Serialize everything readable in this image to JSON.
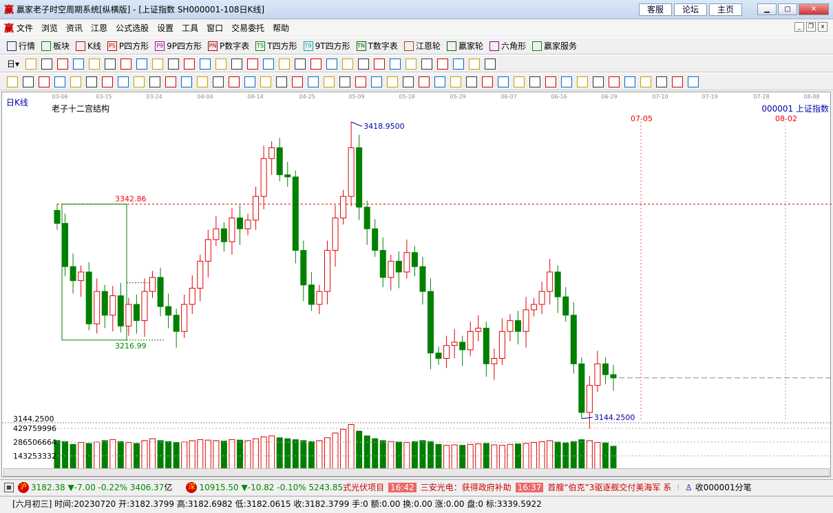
{
  "window": {
    "title": "赢家老子时空周期系统[纵横版] - [上证指数  SH000001-108日K线]",
    "logo": "赢",
    "links": [
      "客服",
      "论坛",
      "主页"
    ]
  },
  "menu": [
    "文件",
    "浏览",
    "资讯",
    "江恩",
    "公式选股",
    "设置",
    "工具",
    "窗口",
    "交易委托",
    "帮助"
  ],
  "toolbar1": [
    {
      "icon": "quotes-grid-icon",
      "label": "行情"
    },
    {
      "icon": "blocks-icon",
      "label": "板块"
    },
    {
      "icon": "kline-icon",
      "label": "K线"
    },
    {
      "icon": "PS",
      "label": "P四方形"
    },
    {
      "icon": "P9",
      "label": "9P四方形"
    },
    {
      "icon": "PN",
      "label": "P数字表"
    },
    {
      "icon": "TS",
      "label": "T四方形"
    },
    {
      "icon": "T9",
      "label": "9T四方形"
    },
    {
      "icon": "TN",
      "label": "T数字表"
    },
    {
      "icon": "gann-wheel-icon",
      "label": "江恩轮"
    },
    {
      "icon": "winner-wheel-icon",
      "label": "赢家轮"
    },
    {
      "icon": "hexagon-icon",
      "label": "六角形"
    },
    {
      "icon": "dollar-icon",
      "label": "赢家服务"
    }
  ],
  "toolbar2": {
    "period": "日"
  },
  "chart": {
    "period_label": "日K线",
    "indicator_title": "老子十二宫结构",
    "symbol_label": "000001  上证指数",
    "date_ticks": [
      "03-06",
      "03-15",
      "03-24",
      "04-04",
      "04-14",
      "04-25",
      "05-09",
      "05-18",
      "05-29",
      "06-07",
      "06-16",
      "06-29",
      "07-10",
      "07-19",
      "07-28",
      "08-08"
    ],
    "cycle_dates": [
      "07-05",
      "08-02"
    ],
    "high_label": "3418.9500",
    "low_label": "3144.2500",
    "left_low_label": "3144.2500",
    "box_high": "3342.86",
    "box_low": "3216.99",
    "volume_ticks": [
      "429759996",
      "286506664",
      "143253332"
    ],
    "colors": {
      "up": "#e00000",
      "down": "#008000",
      "box": "#008000",
      "cycle_line": "#e00000"
    },
    "closes": [
      3325,
      3285,
      3272,
      3280,
      3232,
      3262,
      3240,
      3258,
      3230,
      3250,
      3235,
      3262,
      3275,
      3248,
      3240,
      3225,
      3250,
      3265,
      3290,
      3310,
      3320,
      3308,
      3330,
      3320,
      3328,
      3350,
      3385,
      3395,
      3370,
      3368,
      3300,
      3268,
      3250,
      3262,
      3300,
      3330,
      3350,
      3395,
      3340,
      3320,
      3300,
      3275,
      3290,
      3280,
      3298,
      3285,
      3262,
      3205,
      3200,
      3212,
      3215,
      3208,
      3225,
      3228,
      3195,
      3200,
      3225,
      3235,
      3225,
      3245,
      3250,
      3262,
      3280,
      3257,
      3240,
      3195,
      3150,
      3175,
      3195,
      3185,
      3182
    ],
    "volumes": [
      300,
      290,
      260,
      280,
      270,
      285,
      300,
      310,
      290,
      280,
      270,
      300,
      320,
      300,
      290,
      280,
      285,
      300,
      310,
      305,
      300,
      295,
      310,
      305,
      300,
      320,
      340,
      350,
      330,
      320,
      310,
      300,
      290,
      300,
      330,
      380,
      420,
      470,
      400,
      350,
      320,
      300,
      290,
      285,
      280,
      290,
      300,
      290,
      260,
      250,
      255,
      250,
      260,
      265,
      270,
      255,
      250,
      260,
      265,
      270,
      280,
      290,
      300,
      285,
      275,
      290,
      310,
      300,
      280,
      275,
      240
    ]
  },
  "ticker": {
    "sh_icon": "沪",
    "sh": "3182.38 ▼-7.00 -0.22% 3406.37",
    "sh_unit": "亿",
    "sz_icon": "深",
    "sz": "10915.50 ▼-10.82 -0.10% 5243.85",
    "news1": "式光伏项目",
    "t1": "16:42",
    "news2": "三安光电：获得政府补助",
    "t2": "16:37",
    "news3": "首艘“伯克”3驱逐舰交付美海军 系",
    "right": "收000001分笔"
  },
  "status": "[六月初三] 时间:20230720 开:3182.3799 高:3182.6982 低:3182.0615 收:3182.3799 手:0 额:0.00 换:0.00 涨:0.00 盘:0 标:3339.5922"
}
